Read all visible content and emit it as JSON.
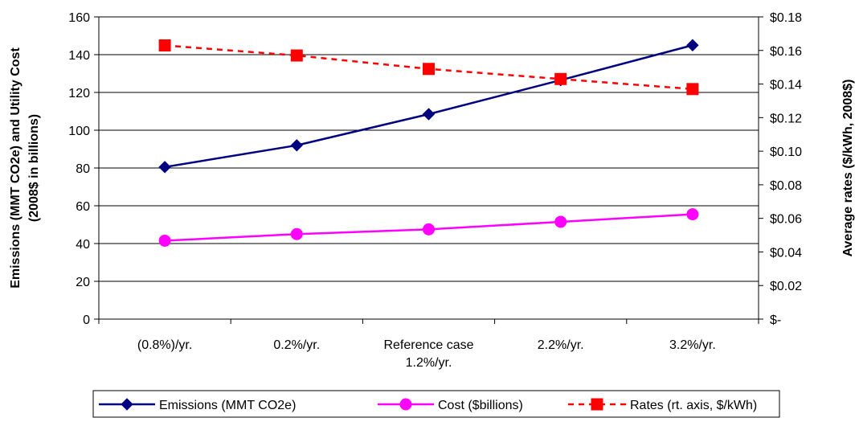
{
  "chart_data": {
    "type": "line",
    "title": "",
    "xlabel": "",
    "categories": [
      [
        "(0.8%)/yr."
      ],
      [
        "0.2%/yr."
      ],
      [
        "Reference case",
        "1.2%/yr."
      ],
      [
        "2.2%/yr."
      ],
      [
        "3.2%/yr."
      ]
    ],
    "y_left": {
      "label_lines": [
        "Emissions (MMT CO2e) and Utility Cost",
        "(2008$ in billions)"
      ],
      "range": [
        0,
        160
      ],
      "ticks": [
        0,
        20,
        40,
        60,
        80,
        100,
        120,
        140,
        160
      ],
      "tick_labels": [
        "0",
        "20",
        "40",
        "60",
        "80",
        "100",
        "120",
        "140",
        "160"
      ]
    },
    "y_right": {
      "label": "Average rates ($/kWh, 2008$)",
      "range": [
        0,
        0.18
      ],
      "ticks": [
        0,
        0.02,
        0.04,
        0.06,
        0.08,
        0.1,
        0.12,
        0.14,
        0.16,
        0.18
      ],
      "tick_labels": [
        "$-",
        "$0.02",
        "$0.04",
        "$0.06",
        "$0.08",
        "$0.10",
        "$0.12",
        "$0.14",
        "$0.16",
        "$0.18"
      ]
    },
    "gridlines": "horizontal",
    "legend_position": "bottom",
    "series": [
      {
        "name": "Emissions (MMT CO2e)",
        "axis": "left",
        "color": "#000080",
        "marker": "diamond",
        "line": "solid",
        "values": [
          80.5,
          92,
          108.5,
          126.5,
          145
        ]
      },
      {
        "name": "Cost ($billions)",
        "axis": "left",
        "color": "#ff00ff",
        "marker": "circle",
        "line": "solid",
        "values": [
          41.5,
          45,
          47.5,
          51.5,
          55.5
        ]
      },
      {
        "name": "Rates (rt. axis, $/kWh)",
        "axis": "right",
        "color": "#ff0000",
        "marker": "square",
        "line": "dashed",
        "values": [
          0.163,
          0.157,
          0.149,
          0.143,
          0.137
        ]
      }
    ]
  }
}
